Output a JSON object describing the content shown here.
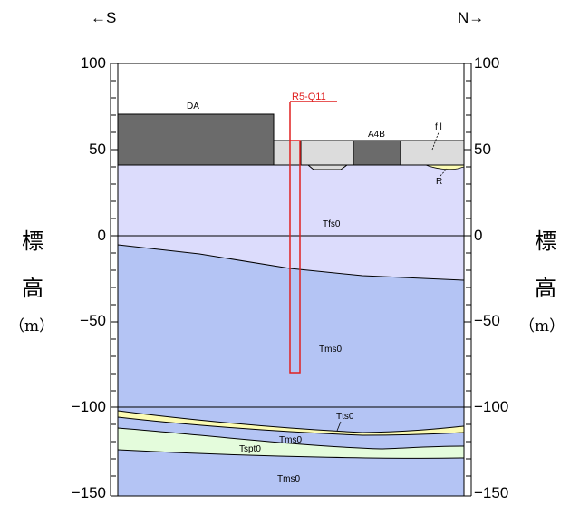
{
  "directions": {
    "left": "←S",
    "right": "N→"
  },
  "axis": {
    "ticks": [
      "100",
      "50",
      "0",
      "−50",
      "−100",
      "−150"
    ],
    "label_chars": [
      "標",
      "高"
    ],
    "unit": "（m）"
  },
  "layers": {
    "DA": "DA",
    "A4B": "A4B",
    "fl": "f l",
    "R": "R",
    "Tfs0": "Tfs0",
    "Tms0_upper": "Tms0",
    "Tts0": "Tts0",
    "Tms0_mid": "Tms0",
    "Tspt0": "Tspt0",
    "Tms0_lower": "Tms0"
  },
  "borehole": {
    "name": "R5-Q11",
    "color": "#e02020"
  },
  "colors": {
    "building_dark": "#6b6b6b",
    "building_light": "#dcdcdc",
    "Tfs0": "#dcdcfc",
    "Tms0": "#b4c4f4",
    "Tts0": "#fcfcb4",
    "Tspt0": "#e4fcdc",
    "R": "#fcfcb4"
  }
}
